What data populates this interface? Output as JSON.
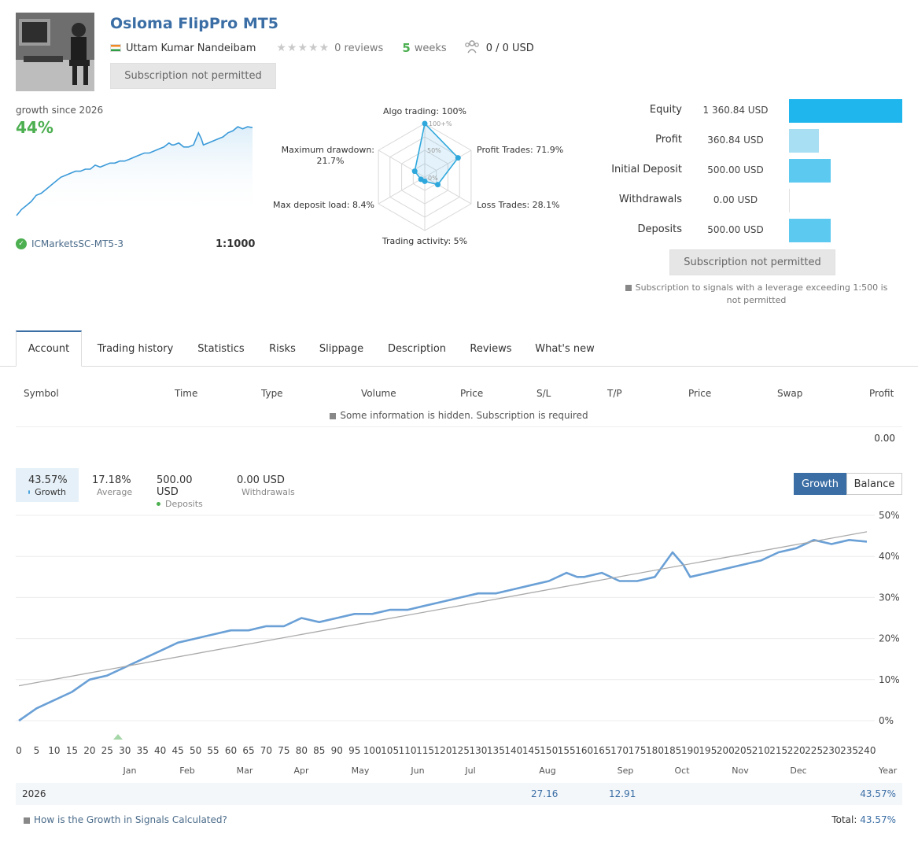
{
  "header": {
    "title": "Osloma FlipPro MT5",
    "author": "Uttam Kumar Nandeibam",
    "stars": "★★★★★",
    "reviews": "0 reviews",
    "weeks_num": "5",
    "weeks_label": "weeks",
    "subscribers": "0 / 0 USD",
    "subscribe_button": "Subscription not permitted"
  },
  "growth": {
    "label": "growth since 2026",
    "value": "44%",
    "server": "ICMarketsSC-MT5-3",
    "leverage": "1:1000"
  },
  "radar": {
    "axes": [
      {
        "label": "Algo trading: 100%",
        "value": 100
      },
      {
        "label": "Profit Trades: 71.9%",
        "value": 71.9
      },
      {
        "label": "Loss Trades: 28.1%",
        "value": 28.1
      },
      {
        "label": "Trading activity: 5%",
        "value": 5
      },
      {
        "label": "Max deposit load: 8.4%",
        "value": 8.4
      },
      {
        "label": "Maximum drawdown:",
        "label2": "21.7%",
        "value": 21.7
      }
    ],
    "ring_labels": [
      "100+%",
      "50%",
      "0%"
    ]
  },
  "stats": [
    {
      "label": "Equity",
      "value": "1 360.84 USD",
      "amount": 1360.84,
      "color": "#1fb6ee"
    },
    {
      "label": "Profit",
      "value": "360.84 USD",
      "amount": 360.84,
      "color": "#a9dff3"
    },
    {
      "label": "Initial Deposit",
      "value": "500.00 USD",
      "amount": 500,
      "color": "#5bc9f0"
    },
    {
      "label": "Withdrawals",
      "value": "0.00 USD",
      "amount": 0,
      "color": "#5bc9f0"
    },
    {
      "label": "Deposits",
      "value": "500.00 USD",
      "amount": 500,
      "color": "#5bc9f0"
    }
  ],
  "right_panel": {
    "subscribe_button": "Subscription not permitted",
    "note": "Subscription to signals with a leverage exceeding 1:500 is not permitted"
  },
  "tabs": [
    "Account",
    "Trading history",
    "Statistics",
    "Risks",
    "Slippage",
    "Description",
    "Reviews",
    "What's new"
  ],
  "table": {
    "headers": [
      "Symbol",
      "Time",
      "Type",
      "Volume",
      "Price",
      "S/L",
      "T/P",
      "Price",
      "Swap",
      "Profit"
    ],
    "hidden_note": "Some information is hidden. Subscription is required",
    "total": "0.00"
  },
  "summary": [
    {
      "value": "43.57%",
      "label": "Growth",
      "color": "#4aa3df"
    },
    {
      "value": "17.18%",
      "label": "Average",
      "color": "#aaaaaa"
    },
    {
      "value": "500.00 USD",
      "label": "Deposits",
      "color": "#4caf50"
    },
    {
      "value": "0.00 USD",
      "label": "Withdrawals",
      "color": "#e8613c"
    }
  ],
  "toggle": {
    "growth": "Growth",
    "balance": "Balance"
  },
  "chart_data": {
    "type": "line",
    "x_ticks": [
      "0",
      "5",
      "10",
      "15",
      "20",
      "25",
      "30",
      "35",
      "40",
      "45",
      "50",
      "55",
      "60",
      "65",
      "70",
      "75",
      "80",
      "85",
      "90",
      "95",
      "100",
      "105",
      "110",
      "115",
      "120",
      "125",
      "130",
      "135",
      "140",
      "145",
      "150",
      "155",
      "160",
      "165",
      "170",
      "175",
      "180",
      "185",
      "190",
      "195",
      "200",
      "205",
      "210",
      "215",
      "220",
      "225",
      "230",
      "235",
      "240"
    ],
    "months": [
      "Jan",
      "Feb",
      "Mar",
      "Apr",
      "May",
      "Jun",
      "Jul",
      "Aug",
      "Sep",
      "Oct",
      "Nov",
      "Dec"
    ],
    "y_ticks": [
      "50%",
      "40%",
      "30%",
      "20%",
      "10%",
      "0%"
    ],
    "ylim": [
      0,
      50
    ],
    "xlim": [
      0,
      240
    ],
    "series": [
      {
        "name": "Growth",
        "color": "#6aa0d6",
        "x": [
          0,
          5,
          10,
          15,
          20,
          25,
          30,
          35,
          40,
          45,
          50,
          55,
          60,
          65,
          70,
          75,
          80,
          85,
          90,
          95,
          100,
          105,
          110,
          115,
          120,
          125,
          130,
          135,
          140,
          145,
          150,
          155,
          158,
          160,
          165,
          170,
          175,
          180,
          185,
          188,
          190,
          195,
          200,
          205,
          210,
          215,
          220,
          225,
          230,
          235,
          240
        ],
        "y": [
          0,
          3,
          5,
          7,
          10,
          11,
          13,
          15,
          17,
          19,
          20,
          21,
          22,
          22,
          23,
          23,
          25,
          24,
          25,
          26,
          26,
          27,
          27,
          28,
          29,
          30,
          31,
          31,
          32,
          33,
          34,
          36,
          35,
          35,
          36,
          34,
          34,
          35,
          41,
          38,
          35,
          36,
          37,
          38,
          39,
          41,
          42,
          44,
          43,
          44,
          43.6
        ]
      },
      {
        "name": "Trend",
        "color": "#aaaaaa",
        "x": [
          0,
          240
        ],
        "y": [
          8.5,
          46
        ]
      }
    ]
  },
  "year_row": {
    "year": "2026",
    "aug": "27.16",
    "sep": "12.91",
    "total": "43.57%"
  },
  "footer": {
    "howto": "How is the Growth in Signals Calculated?",
    "total_label": "Total:",
    "total_value": "43.57%"
  }
}
